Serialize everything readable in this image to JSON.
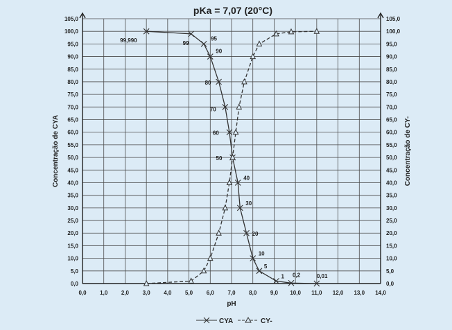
{
  "chart_data": {
    "type": "line",
    "title": "pKa = 7,07  (20°C)",
    "xlabel": "pH",
    "ylabel_left": "Concentração de CYA",
    "ylabel_right": "Concentração de CY-",
    "xlim": [
      0,
      14
    ],
    "ylim": [
      0,
      105
    ],
    "x_ticks": [
      "0,0",
      "1,0",
      "2,0",
      "3,0",
      "4,0",
      "5,0",
      "6,0",
      "7,0",
      "8,0",
      "9,0",
      "10,0",
      "11,0",
      "12,0",
      "13,0",
      "14,0"
    ],
    "y_ticks": [
      "0,0",
      "5,0",
      "10,0",
      "15,0",
      "20,0",
      "25,0",
      "30,0",
      "35,0",
      "40,0",
      "45,0",
      "50,0",
      "55,0",
      "60,0",
      "65,0",
      "70,0",
      "75,0",
      "80,0",
      "85,0",
      "90,0",
      "95,0",
      "100,0",
      "105,0"
    ],
    "grid": true,
    "legend_position": "bottom",
    "series": [
      {
        "name": "CYA",
        "marker": "x",
        "line": "solid",
        "color": "#333333",
        "points": [
          [
            3.0,
            100
          ],
          [
            5.1,
            99
          ],
          [
            5.7,
            95
          ],
          [
            6.0,
            90
          ],
          [
            6.4,
            80
          ],
          [
            6.7,
            70
          ],
          [
            6.9,
            60
          ],
          [
            7.05,
            50
          ],
          [
            7.3,
            40
          ],
          [
            7.4,
            30
          ],
          [
            7.7,
            20
          ],
          [
            8.0,
            10
          ],
          [
            8.3,
            5
          ],
          [
            9.1,
            1
          ],
          [
            9.8,
            0.2
          ],
          [
            11.0,
            0.01
          ]
        ],
        "labels": [
          "99,990",
          "99",
          "95",
          "90",
          "80",
          "70",
          "60",
          "50",
          "40",
          "30",
          "20",
          "10",
          "5",
          "1",
          "0,2",
          "0,01"
        ]
      },
      {
        "name": "CY-",
        "marker": "triangle",
        "line": "dashed",
        "color": "#333333",
        "points": [
          [
            3.0,
            0
          ],
          [
            5.1,
            1
          ],
          [
            5.7,
            5
          ],
          [
            6.0,
            10
          ],
          [
            6.4,
            20
          ],
          [
            6.7,
            30
          ],
          [
            6.9,
            40
          ],
          [
            7.05,
            50
          ],
          [
            7.2,
            60
          ],
          [
            7.35,
            70
          ],
          [
            7.6,
            80
          ],
          [
            8.0,
            90
          ],
          [
            8.3,
            95
          ],
          [
            9.1,
            99
          ],
          [
            9.8,
            99.8
          ],
          [
            11.0,
            99.99
          ]
        ]
      }
    ]
  }
}
